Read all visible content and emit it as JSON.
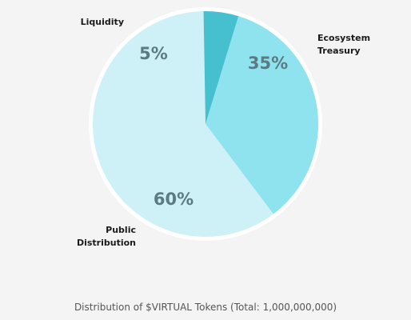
{
  "caption": "Distribution of $VIRTUAL Tokens (Total: 1,000,000,000)",
  "colors": {
    "background": "#f4f4f4",
    "outline": "#ffffff",
    "percent_text": "#5b7a83",
    "category_text": "#1a1a1a"
  },
  "chart_data": {
    "type": "pie",
    "title": "",
    "start_angle_deg": -73,
    "slices": [
      {
        "label_lines": [
          "Ecosystem",
          "Treasury"
        ],
        "value": 35,
        "percent_label": "35%",
        "color": "#8fe3ee"
      },
      {
        "label_lines": [
          "Public",
          "Distribution"
        ],
        "value": 60,
        "percent_label": "60%",
        "color": "#cdf1f6"
      },
      {
        "label_lines": [
          "Liquidity"
        ],
        "value": 5,
        "percent_label": "5%",
        "color": "#46bfcf"
      }
    ]
  }
}
